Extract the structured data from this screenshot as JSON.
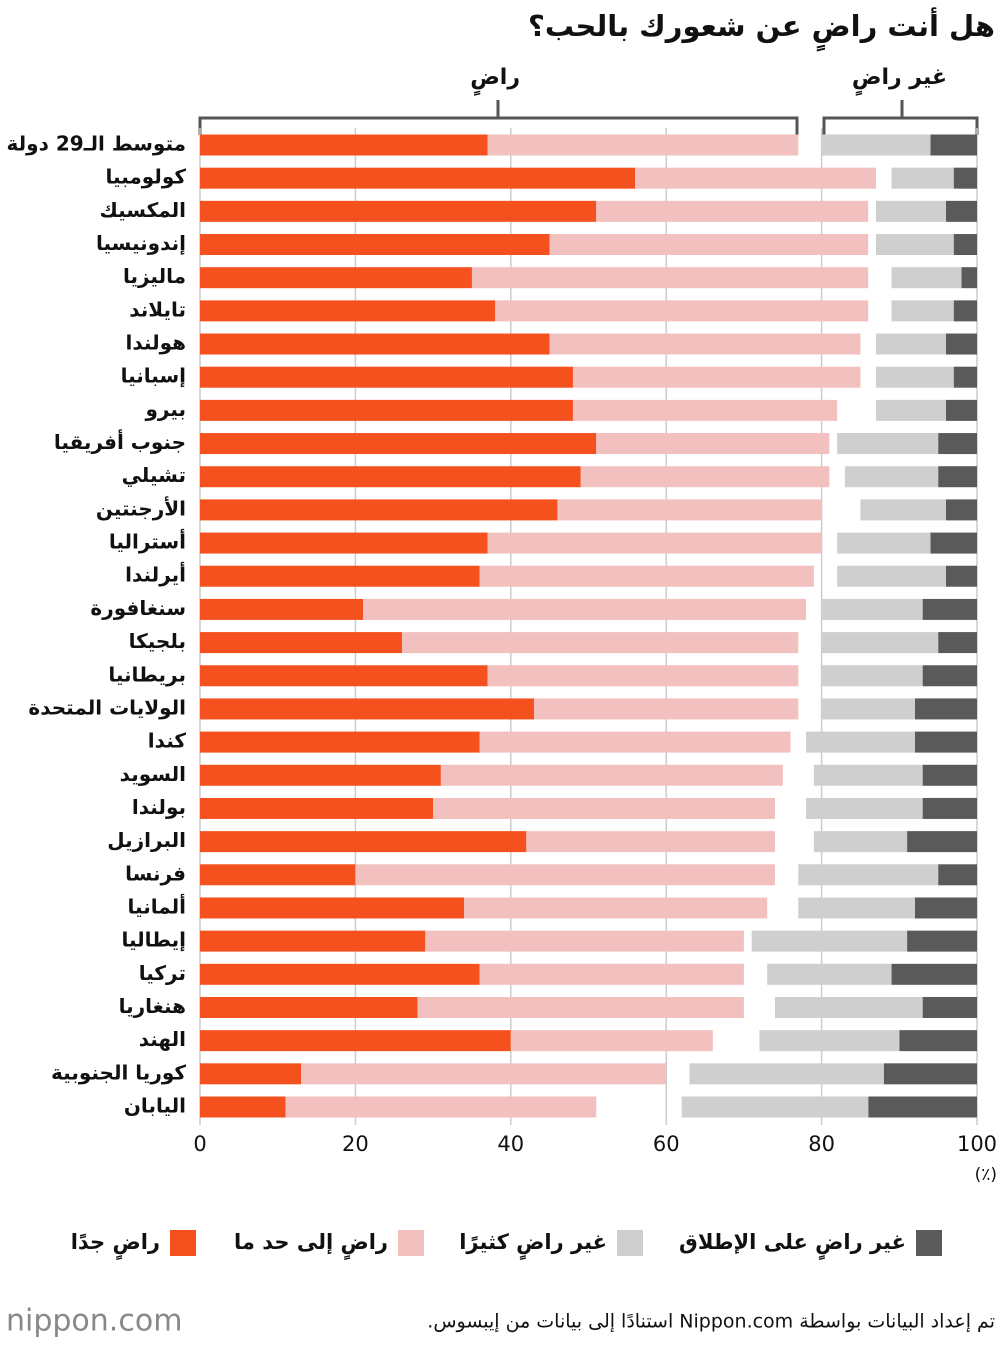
{
  "chart_data": {
    "type": "stacked_barh",
    "title": "هل أنت راضٍ عن شعورك بالحب؟",
    "annotations": [
      "راضٍ",
      "غير راضٍ"
    ],
    "xunit": "(٪)",
    "source": "تم إعداد البيانات بواسطة Nippon.com استنادًا إلى بيانات من إيبسوس.",
    "logo": "nippon.com",
    "xlim": [
      0,
      100
    ],
    "xticks": [
      0,
      20,
      40,
      60,
      80,
      100
    ],
    "grid": true,
    "categories": [
      "متوسط الـ29 دولة",
      "كولومبيا",
      "المكسيك",
      "إندونيسيا",
      "ماليزيا",
      "تايلاند",
      "هولندا",
      "إسبانيا",
      "بيرو",
      "جنوب أفريقيا",
      "تشيلي",
      "الأرجنتين",
      "أستراليا",
      "أيرلندا",
      "سنغافورة",
      "بلجيكا",
      "بريطانيا",
      "الولايات المتحدة",
      "كندا",
      "السويد",
      "بولندا",
      "البرازيل",
      "فرنسا",
      "ألمانيا",
      "إيطاليا",
      "تركيا",
      "هنغاريا",
      "الهند",
      "كوريا الجنوبية",
      "اليابان"
    ],
    "series": [
      {
        "name": "راضٍ جدًا",
        "color": "#f4511e",
        "stack": "start",
        "values": [
          37,
          56,
          51,
          45,
          35,
          38,
          45,
          48,
          48,
          51,
          49,
          46,
          37,
          36,
          21,
          26,
          37,
          43,
          36,
          31,
          30,
          42,
          20,
          34,
          29,
          36,
          28,
          40,
          13,
          11
        ]
      },
      {
        "name": "راضٍ إلى حد ما",
        "color": "#f2c0bf",
        "stack": "start",
        "values": [
          40,
          31,
          35,
          41,
          51,
          48,
          40,
          37,
          34,
          30,
          32,
          34,
          43,
          43,
          57,
          51,
          40,
          34,
          40,
          44,
          44,
          32,
          54,
          39,
          41,
          34,
          42,
          26,
          47,
          40
        ]
      },
      {
        "name": "غير راضٍ كثيرًا",
        "color": "#cfcfcf",
        "stack": "end",
        "values": [
          14,
          8,
          9,
          10,
          9,
          8,
          9,
          10,
          9,
          13,
          12,
          11,
          12,
          14,
          13,
          15,
          13,
          12,
          14,
          14,
          15,
          12,
          18,
          15,
          20,
          16,
          19,
          18,
          25,
          24
        ]
      },
      {
        "name": "غير راضٍ على الإطلاق",
        "color": "#5a5a5a",
        "stack": "end",
        "values": [
          6,
          3,
          4,
          3,
          2,
          3,
          4,
          3,
          4,
          5,
          5,
          4,
          6,
          4,
          7,
          5,
          7,
          8,
          8,
          7,
          7,
          9,
          5,
          8,
          9,
          11,
          7,
          10,
          12,
          14
        ]
      }
    ]
  }
}
